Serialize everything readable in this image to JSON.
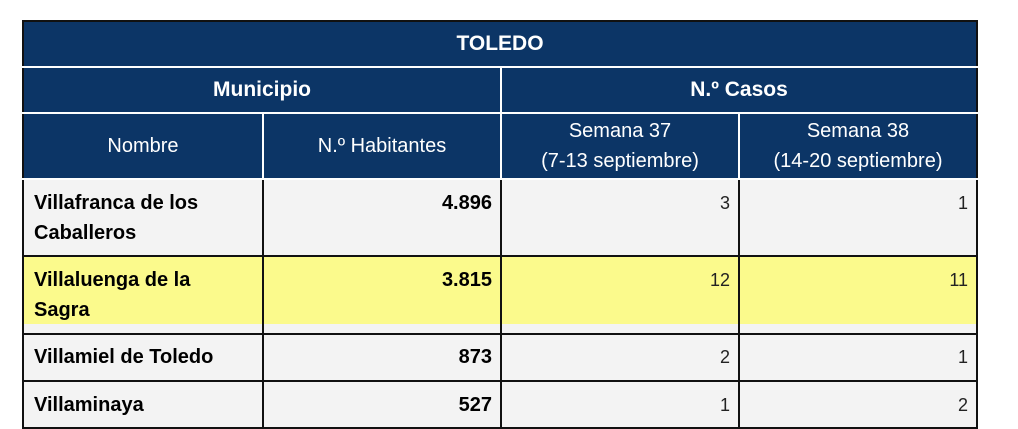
{
  "table": {
    "title": "TOLEDO",
    "group_headers": [
      "Municipio",
      "N.º Casos"
    ],
    "columns": [
      {
        "line1": "Nombre",
        "line2": ""
      },
      {
        "line1": "N.º Habitantes",
        "line2": ""
      },
      {
        "line1": "Semana 37",
        "line2": "(7-13 septiembre)"
      },
      {
        "line1": "Semana 38",
        "line2": "(14-20 septiembre)"
      }
    ],
    "rows": [
      {
        "nombre_l1": "Villafranca de los",
        "nombre_l2": "Caballeros",
        "habitantes": "4.896",
        "s37": "3",
        "s38": "1",
        "highlight": false
      },
      {
        "nombre_l1": "Villaluenga de la",
        "nombre_l2": "Sagra",
        "habitantes": "3.815",
        "s37": "12",
        "s38": "11",
        "highlight": true
      },
      {
        "nombre_l1": "Villamiel de Toledo",
        "nombre_l2": "",
        "habitantes": "873",
        "s37": "2",
        "s38": "1",
        "highlight": false
      },
      {
        "nombre_l1": "Villaminaya",
        "nombre_l2": "",
        "habitantes": "527",
        "s37": "1",
        "s38": "2",
        "highlight": false
      }
    ],
    "colors": {
      "header_bg": "#0c3566",
      "highlight": "#fbfa8c",
      "row_bg": "#f3f3f3"
    }
  }
}
